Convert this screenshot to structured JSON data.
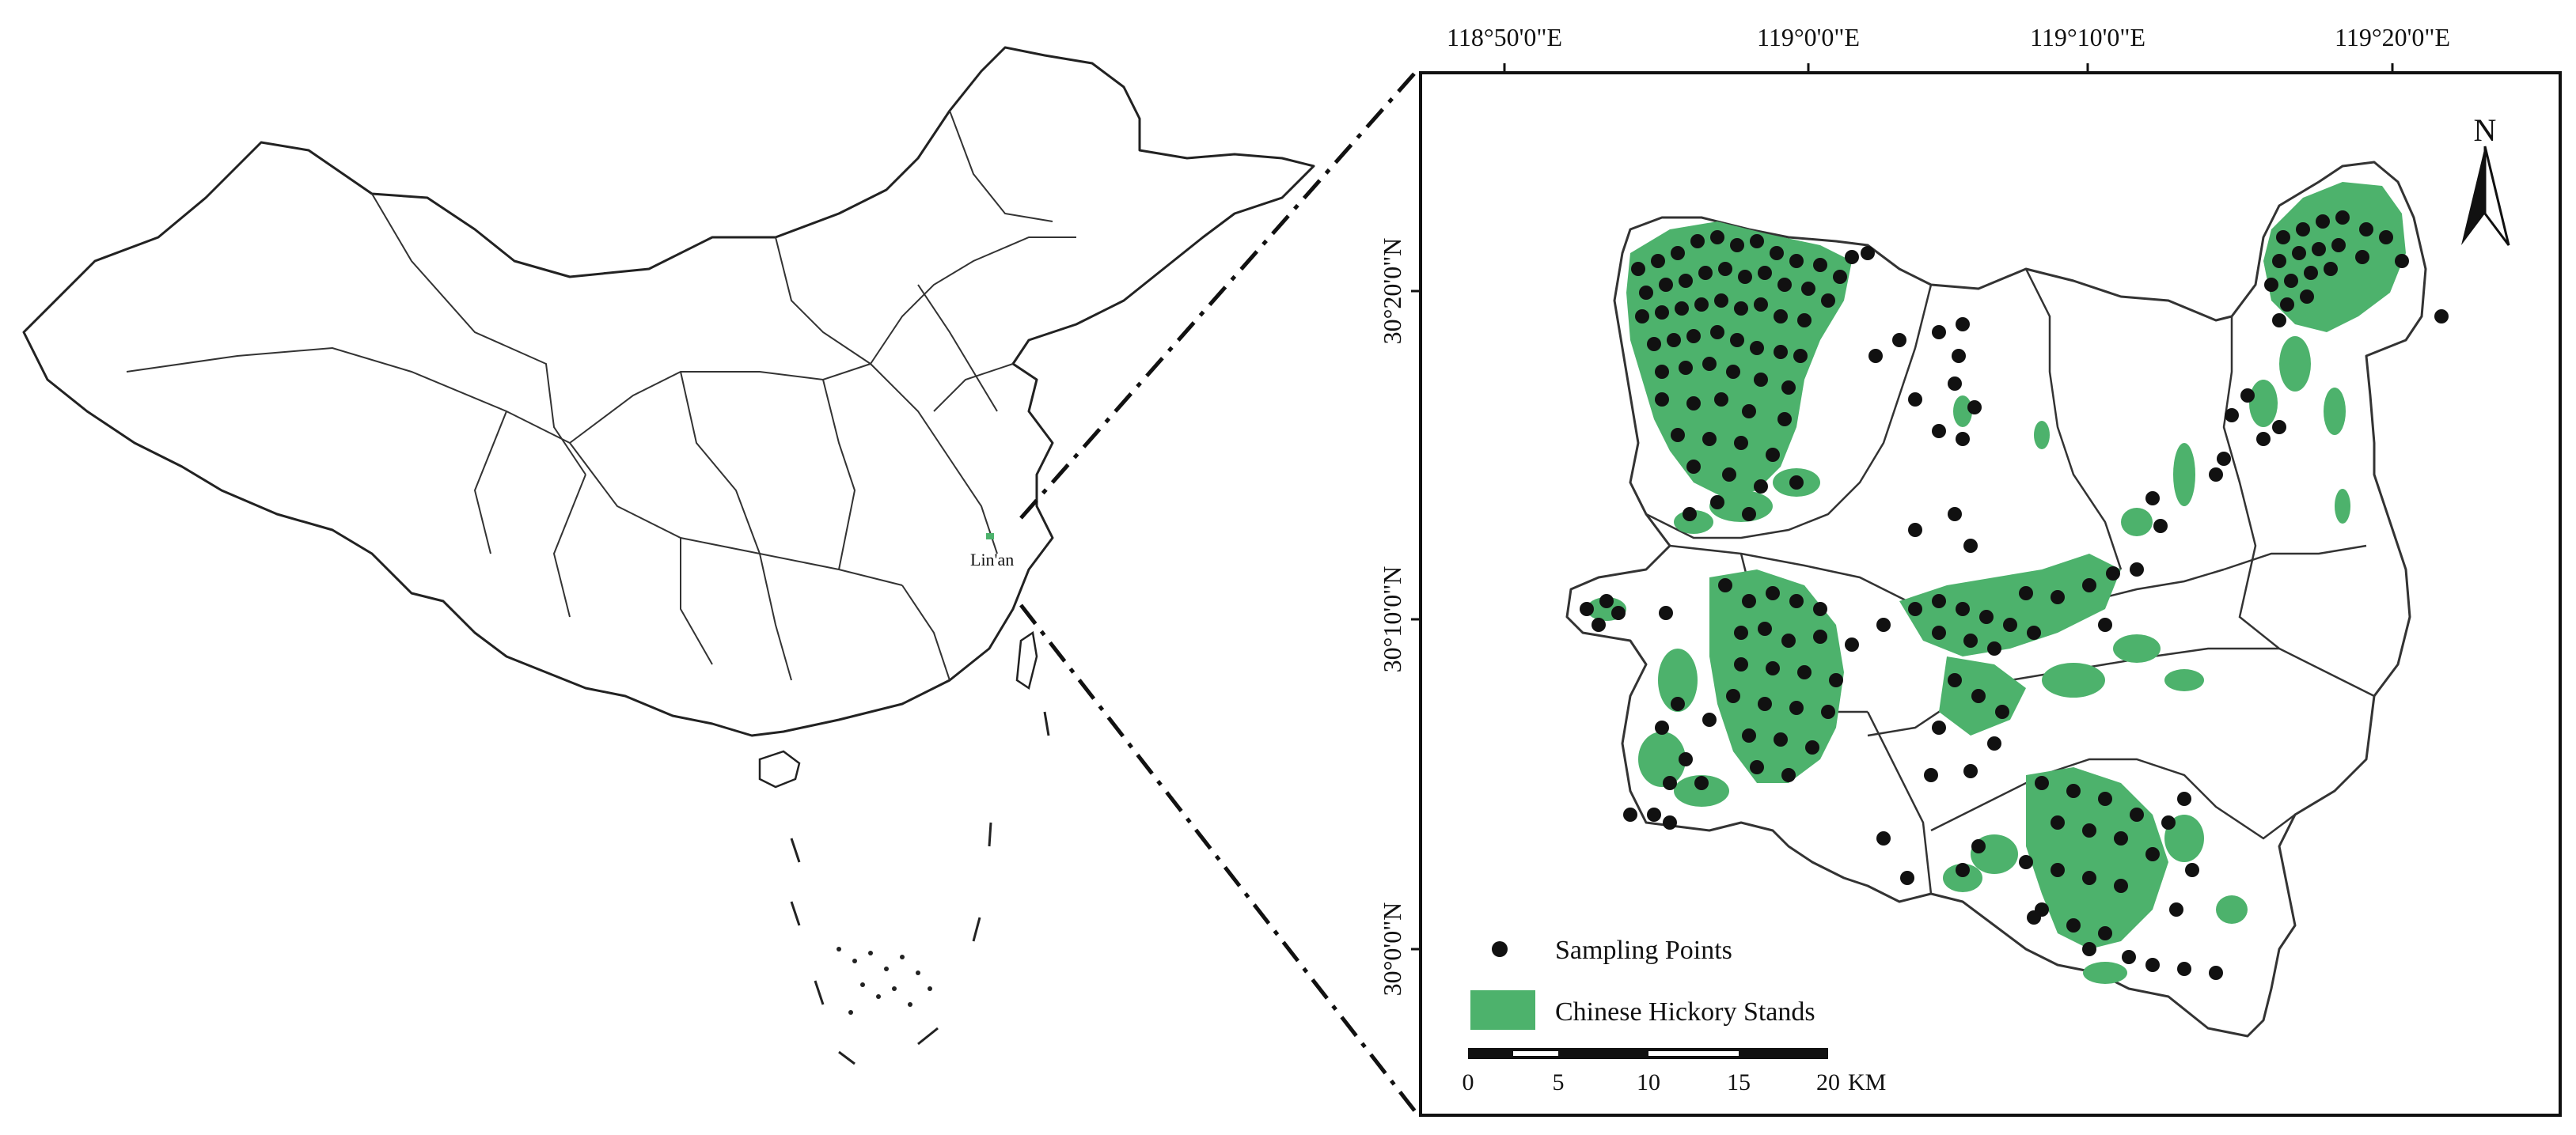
{
  "overview_map": {
    "region_label": "Lin'an",
    "colors": {
      "boundary": "#222222",
      "study_area": "#4db26c"
    }
  },
  "detail_map": {
    "lon_ticks": [
      "118°50'0\"E",
      "119°0'0\"E",
      "119°10'0\"E",
      "119°20'0\"E"
    ],
    "lat_ticks": [
      "30°20'0\"N",
      "30°10'0\"N",
      "30°0'0\"N"
    ],
    "north_label": "N",
    "legend": {
      "sampling_points": "Sampling Points",
      "hickory_stands": "Chinese Hickory Stands"
    },
    "scale_bar": {
      "ticks": [
        "0",
        "5",
        "10",
        "15",
        "20"
      ],
      "unit": "KM"
    },
    "colors": {
      "stands": "#4db26c",
      "points": "#111111",
      "frame": "#111111",
      "boundary": "#333333"
    }
  }
}
